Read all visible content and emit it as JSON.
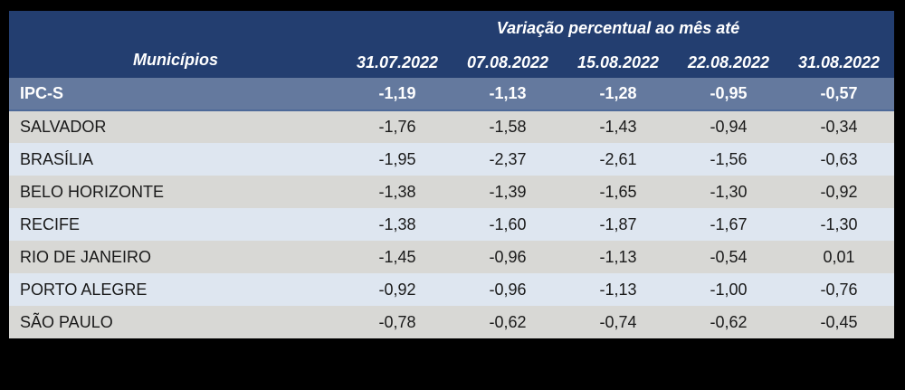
{
  "colors": {
    "page_bg": "#000000",
    "header_bg": "#233E70",
    "summary_row_bg": "#64799E",
    "row_gray_bg": "#D8D8D5",
    "row_blue_bg": "#DEE6F0",
    "header_text": "#FFFFFF",
    "body_text": "#1A1A1A"
  },
  "table": {
    "header": {
      "row_header_label": "Municípios",
      "group_title": "Variação percentual ao mês até",
      "dates": [
        "31.07.2022",
        "07.08.2022",
        "15.08.2022",
        "22.08.2022",
        "31.08.2022"
      ]
    },
    "summary_row": {
      "name": "IPC-S",
      "values": [
        "-1,19",
        "-1,13",
        "-1,28",
        "-0,95",
        "-0,57"
      ]
    },
    "rows": [
      {
        "name": "SALVADOR",
        "values": [
          "-1,76",
          "-1,58",
          "-1,43",
          "-0,94",
          "-0,34"
        ]
      },
      {
        "name": "BRASÍLIA",
        "values": [
          "-1,95",
          "-2,37",
          "-2,61",
          "-1,56",
          "-0,63"
        ]
      },
      {
        "name": "BELO HORIZONTE",
        "values": [
          "-1,38",
          "-1,39",
          "-1,65",
          "-1,30",
          "-0,92"
        ]
      },
      {
        "name": "RECIFE",
        "values": [
          "-1,38",
          "-1,60",
          "-1,87",
          "-1,67",
          "-1,30"
        ]
      },
      {
        "name": "RIO DE JANEIRO",
        "values": [
          "-1,45",
          "-0,96",
          "-1,13",
          "-0,54",
          "0,01"
        ]
      },
      {
        "name": "PORTO ALEGRE",
        "values": [
          "-0,92",
          "-0,96",
          "-1,13",
          "-1,00",
          "-0,76"
        ]
      },
      {
        "name": "SÃO PAULO",
        "values": [
          "-0,78",
          "-0,62",
          "-0,74",
          "-0,62",
          "-0,45"
        ]
      }
    ]
  },
  "chart_data": {
    "type": "table",
    "title": "Variação percentual ao mês até",
    "row_header": "Municípios",
    "columns": [
      "31.07.2022",
      "07.08.2022",
      "15.08.2022",
      "22.08.2022",
      "31.08.2022"
    ],
    "rows": [
      {
        "name": "IPC-S",
        "values": [
          -1.19,
          -1.13,
          -1.28,
          -0.95,
          -0.57
        ],
        "emphasis": true
      },
      {
        "name": "SALVADOR",
        "values": [
          -1.76,
          -1.58,
          -1.43,
          -0.94,
          -0.34
        ]
      },
      {
        "name": "BRASÍLIA",
        "values": [
          -1.95,
          -2.37,
          -2.61,
          -1.56,
          -0.63
        ]
      },
      {
        "name": "BELO HORIZONTE",
        "values": [
          -1.38,
          -1.39,
          -1.65,
          -1.3,
          -0.92
        ]
      },
      {
        "name": "RECIFE",
        "values": [
          -1.38,
          -1.6,
          -1.87,
          -1.67,
          -1.3
        ]
      },
      {
        "name": "RIO DE JANEIRO",
        "values": [
          -1.45,
          -0.96,
          -1.13,
          -0.54,
          0.01
        ]
      },
      {
        "name": "PORTO ALEGRE",
        "values": [
          -0.92,
          -0.96,
          -1.13,
          -1.0,
          -0.76
        ]
      },
      {
        "name": "SÃO PAULO",
        "values": [
          -0.78,
          -0.62,
          -0.74,
          -0.62,
          -0.45
        ]
      }
    ]
  }
}
